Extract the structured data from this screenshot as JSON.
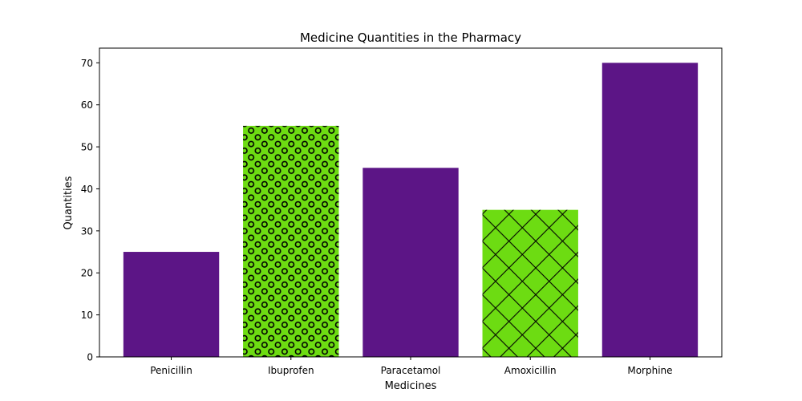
{
  "chart_data": {
    "type": "bar",
    "title": "Medicine Quantities in the Pharmacy",
    "xlabel": "Medicines",
    "ylabel": "Quantities",
    "categories": [
      "Penicillin",
      "Ibuprofen",
      "Paracetamol",
      "Amoxicillin",
      "Morphine"
    ],
    "values": [
      25,
      55,
      45,
      35,
      70
    ],
    "bar_colors": [
      "#5c1586",
      "#6ddc12",
      "#5c1586",
      "#6ddc12",
      "#5c1586"
    ],
    "bar_hatches": [
      "none",
      "circles",
      "none",
      "crosshatch",
      "none"
    ],
    "ylim": [
      0,
      73.5
    ],
    "yticks": [
      0,
      10,
      20,
      30,
      40,
      50,
      60,
      70
    ],
    "grid": false,
    "legend": "none"
  }
}
